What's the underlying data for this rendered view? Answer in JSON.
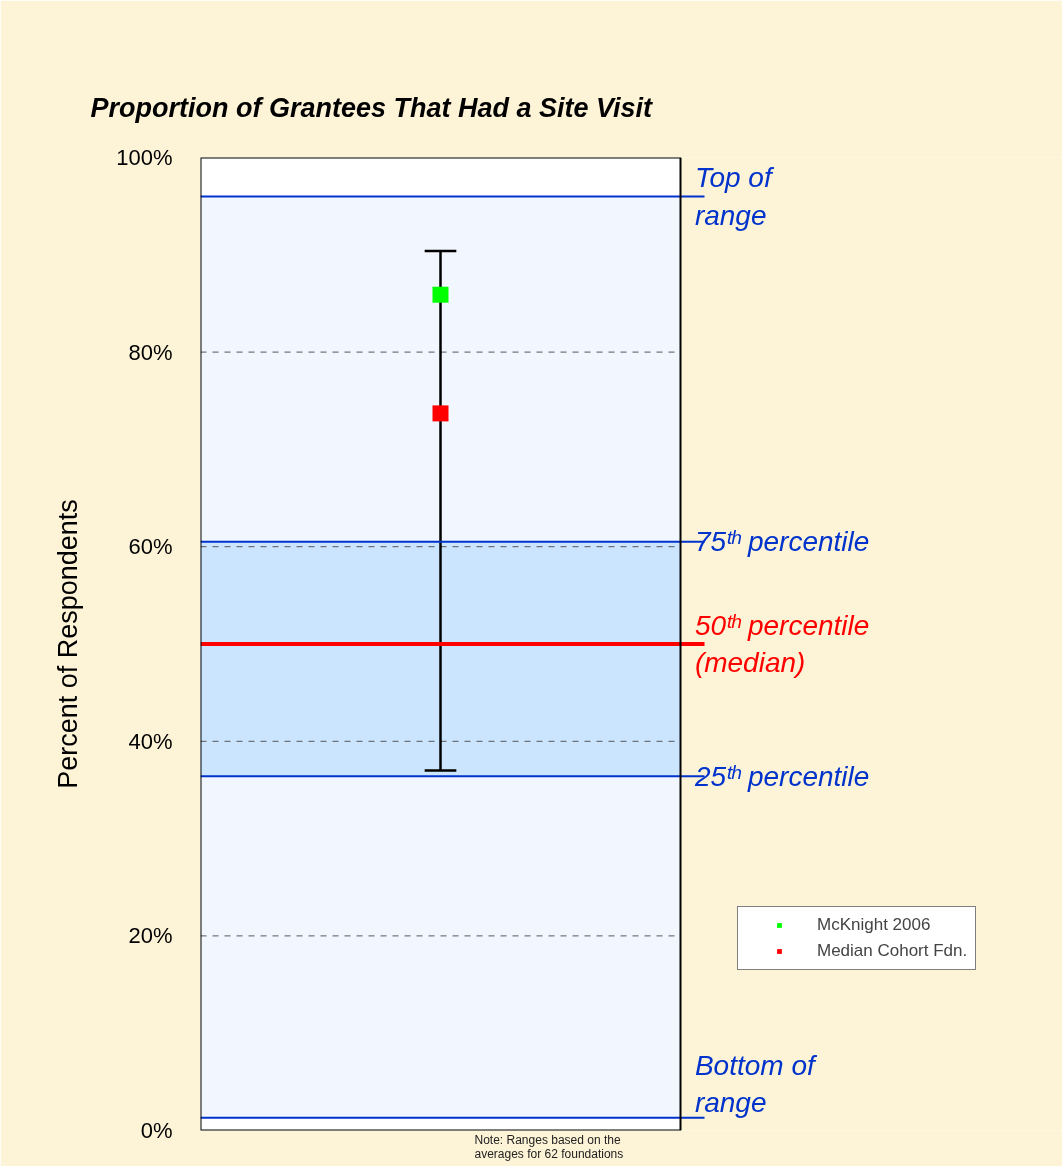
{
  "chart_data": {
    "type": "scatter",
    "title": "Proportion of Grantees That Had a Site Visit",
    "ylabel": "Percent of Respondents",
    "categories": [
      null
    ],
    "series": [
      {
        "name": "McKnight 2006",
        "color": "#00ff00",
        "values": [
          85.9
        ]
      },
      {
        "name": "Median Cohort Fdn.",
        "color": "#ff0000",
        "values": [
          73.7
        ],
        "errors": [
          [
            37.0,
            90.4
          ]
        ]
      }
    ],
    "ylim": [
      0,
      100
    ],
    "yticks": [
      {
        "value": 0,
        "label": "0%"
      },
      {
        "value": 20,
        "label": "20%"
      },
      {
        "value": 40,
        "label": "40%"
      },
      {
        "value": 60,
        "label": "60%"
      },
      {
        "value": 80,
        "label": "80%"
      },
      {
        "value": 100,
        "label": "100%"
      }
    ],
    "grid": "y",
    "marker": "square",
    "legend": "right",
    "tick_labels": "y",
    "bands": [
      {
        "axis": "y",
        "from": 1.3,
        "to": 96.0,
        "color": "#f2f7ff"
      },
      {
        "axis": "y",
        "from": 36.4,
        "to": 60.5,
        "color": "#cce5ff"
      }
    ],
    "ref_lines": [
      {
        "axis": "y",
        "value": 96.0,
        "label": "Top of\nrange",
        "color": "#0033cc"
      },
      {
        "axis": "y",
        "value": 60.5,
        "label": "75ᵗʰ percentile",
        "color": "#0033cc"
      },
      {
        "axis": "y",
        "value": 50.0,
        "label": "50ᵗʰ percentile\n(median)",
        "color": "#ff0000"
      },
      {
        "axis": "y",
        "value": 36.4,
        "label": "25ᵗʰ percentile",
        "color": "#0033cc"
      },
      {
        "axis": "y",
        "value": 1.3,
        "label": "Bottom of\nrange",
        "color": "#0033cc"
      }
    ],
    "annotations": [
      "Note: Ranges based on the\naverages for 62 foundations"
    ]
  }
}
